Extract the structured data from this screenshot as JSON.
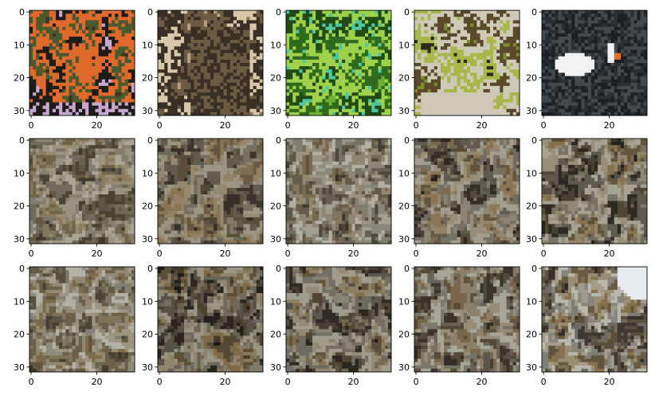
{
  "figure": {
    "rows": 3,
    "cols": 5
  },
  "chart_data": {
    "type": "image-grid",
    "title": "",
    "xlabel": "",
    "ylabel": "",
    "image_resolution": [
      32,
      32
    ],
    "xlim": [
      -0.5,
      31.5
    ],
    "ylim": [
      31.5,
      -0.5
    ],
    "xticks": [
      0,
      20
    ],
    "yticks": [
      0,
      10,
      20,
      30
    ],
    "grid": false,
    "legend": "none",
    "panels": [
      {
        "row": 0,
        "col": 0,
        "kind": "original",
        "subject": "orange bird on dark foliage",
        "colors": [
          "#3a3322",
          "#4b5a2e",
          "#e06a2c",
          "#1e1c18",
          "#c9a6cf"
        ]
      },
      {
        "row": 0,
        "col": 1,
        "kind": "original",
        "subject": "owl",
        "colors": [
          "#b79e80",
          "#6c5a42",
          "#3a2f25",
          "#d8c7a8",
          "#8a7358"
        ]
      },
      {
        "row": 0,
        "col": 2,
        "kind": "original",
        "subject": "green lizard on leaves",
        "colors": [
          "#6faf33",
          "#2f6a1e",
          "#9fd24a",
          "#1f4a14",
          "#4ec8a0"
        ]
      },
      {
        "row": 0,
        "col": 3,
        "kind": "original",
        "subject": "bird in cage with grass",
        "colors": [
          "#7c8e2e",
          "#5a4a2a",
          "#cfc9b8",
          "#a8b848",
          "#2c2a1c"
        ]
      },
      {
        "row": 0,
        "col": 4,
        "kind": "original",
        "subject": "white swan on dark water",
        "colors": [
          "#2a2f33",
          "#44494d",
          "#f2f2f2",
          "#1c2024",
          "#e07030"
        ]
      },
      {
        "row": 1,
        "col": 0,
        "kind": "generated",
        "colors": [
          "#7d7460",
          "#4a4234",
          "#a9a698",
          "#8c7a5a",
          "#2e2a24"
        ]
      },
      {
        "row": 1,
        "col": 1,
        "kind": "generated",
        "colors": [
          "#6f6450",
          "#3c352b",
          "#9c9584",
          "#8a7552",
          "#2a2620"
        ]
      },
      {
        "row": 1,
        "col": 2,
        "kind": "generated",
        "colors": [
          "#8a8574",
          "#4e483c",
          "#b2b0a4",
          "#7a6a50",
          "#363228"
        ]
      },
      {
        "row": 1,
        "col": 3,
        "kind": "generated",
        "colors": [
          "#6a5f4c",
          "#332e26",
          "#a39f90",
          "#8a7554",
          "#24201c"
        ]
      },
      {
        "row": 1,
        "col": 4,
        "kind": "generated",
        "colors": [
          "#6d6350",
          "#2e2a22",
          "#a6a294",
          "#86714e",
          "#1e1c18"
        ]
      },
      {
        "row": 2,
        "col": 0,
        "kind": "generated",
        "colors": [
          "#8a8270",
          "#55503f",
          "#b4b2a6",
          "#7c6a4c",
          "#3a352c"
        ]
      },
      {
        "row": 2,
        "col": 1,
        "kind": "generated",
        "colors": [
          "#5e5444",
          "#2a261f",
          "#9a9585",
          "#7e6a48",
          "#1a1814"
        ]
      },
      {
        "row": 2,
        "col": 2,
        "kind": "generated",
        "colors": [
          "#6a604e",
          "#302b24",
          "#a09c8e",
          "#826d4c",
          "#221f1a"
        ]
      },
      {
        "row": 2,
        "col": 3,
        "kind": "generated",
        "colors": [
          "#726854",
          "#3a342a",
          "#a8a698",
          "#7a6648",
          "#26231d"
        ]
      },
      {
        "row": 2,
        "col": 4,
        "kind": "generated",
        "colors": [
          "#7a705c",
          "#3e3830",
          "#b8b8ae",
          "#86714e",
          "#2a2620"
        ],
        "highlight": "#e8ecf0"
      }
    ]
  }
}
